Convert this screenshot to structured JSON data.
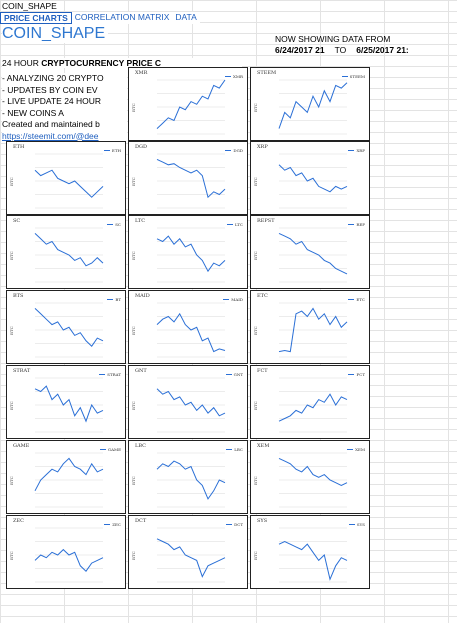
{
  "sheet": {
    "title": "COIN_SHAPE"
  },
  "tabs": [
    {
      "label": "PRICE CHARTS",
      "active": true
    },
    {
      "label": "CORRELATION MATRIX",
      "active": false
    },
    {
      "label": "DATA",
      "active": false
    }
  ],
  "brand": "COIN_SHAPE",
  "header": {
    "now_showing": "NOW SHOWING DATA FROM",
    "date_from": "6/24/2017 21",
    "to_label": "TO",
    "date_to": "6/25/2017 21:"
  },
  "hours": {
    "prefix": "24 HOUR ",
    "bold": "CRYPTOCURRENCY PRICE C"
  },
  "bullets": [
    "- ANALYZING 20 CRYPTO",
    "- UPDATES BY COIN EV",
    "- LIVE UPDATE 24 HOUR",
    "- NEW COINS A",
    "Created and maintained b"
  ],
  "link": "https://steemit.com/@dee",
  "colors": {
    "line": "#2a6fd6",
    "accent": "#2e77d0"
  },
  "chart_data": [
    {
      "type": "line",
      "title": "XMR",
      "legend": "XMR",
      "ylabel": "BTC",
      "values": [
        0.1,
        0.2,
        0.3,
        0.25,
        0.5,
        0.45,
        0.6,
        0.55,
        0.7,
        0.65,
        0.9,
        0.85,
        1.0
      ]
    },
    {
      "type": "line",
      "title": "STEEM",
      "legend": "STEEM",
      "ylabel": "BTC",
      "values": [
        0.1,
        0.4,
        0.3,
        0.6,
        0.5,
        0.4,
        0.7,
        0.5,
        0.8,
        0.6,
        0.9,
        0.85,
        0.95
      ]
    },
    {
      "type": "line",
      "title": "ETH",
      "legend": "ETH",
      "ylabel": "BTC",
      "values": [
        0.7,
        0.6,
        0.65,
        0.7,
        0.55,
        0.5,
        0.45,
        0.5,
        0.4,
        0.3,
        0.2,
        0.3,
        0.4
      ]
    },
    {
      "type": "line",
      "title": "DGD",
      "legend": "DGD",
      "ylabel": "BTC",
      "values": [
        0.9,
        0.85,
        0.8,
        0.82,
        0.75,
        0.7,
        0.65,
        0.7,
        0.6,
        0.2,
        0.3,
        0.25,
        0.35
      ]
    },
    {
      "type": "line",
      "title": "XRP",
      "legend": "XRP",
      "ylabel": "BTC",
      "values": [
        0.8,
        0.7,
        0.75,
        0.6,
        0.65,
        0.5,
        0.55,
        0.4,
        0.35,
        0.3,
        0.4,
        0.35,
        0.4
      ]
    },
    {
      "type": "line",
      "title": "SC",
      "legend": "SC",
      "ylabel": "BTC",
      "values": [
        0.9,
        0.8,
        0.7,
        0.75,
        0.6,
        0.55,
        0.5,
        0.4,
        0.45,
        0.3,
        0.35,
        0.45,
        0.35
      ]
    },
    {
      "type": "line",
      "title": "LTC",
      "legend": "LTC",
      "ylabel": "BTC",
      "values": [
        0.8,
        0.75,
        0.85,
        0.7,
        0.8,
        0.65,
        0.7,
        0.5,
        0.4,
        0.2,
        0.35,
        0.3,
        0.4
      ]
    },
    {
      "type": "line",
      "title": "REPST",
      "legend": "REP",
      "ylabel": "BTC",
      "values": [
        0.9,
        0.85,
        0.8,
        0.7,
        0.75,
        0.6,
        0.55,
        0.5,
        0.4,
        0.35,
        0.25,
        0.2,
        0.15
      ]
    },
    {
      "type": "line",
      "title": "BTS",
      "legend": "BT",
      "ylabel": "BTC",
      "values": [
        0.9,
        0.8,
        0.7,
        0.6,
        0.65,
        0.5,
        0.55,
        0.4,
        0.45,
        0.3,
        0.2,
        0.35,
        0.3
      ]
    },
    {
      "type": "line",
      "title": "MAID",
      "legend": "MAID",
      "ylabel": "BTC",
      "values": [
        0.6,
        0.7,
        0.75,
        0.65,
        0.8,
        0.6,
        0.5,
        0.55,
        0.3,
        0.35,
        0.1,
        0.15,
        0.12
      ]
    },
    {
      "type": "line",
      "title": "ETC",
      "legend": "ETC",
      "ylabel": "BTC",
      "values": [
        0.1,
        0.12,
        0.1,
        0.8,
        0.85,
        0.75,
        0.9,
        0.7,
        0.8,
        0.6,
        0.75,
        0.55,
        0.65
      ]
    },
    {
      "type": "line",
      "title": "STRAT",
      "legend": "STRAT",
      "ylabel": "BTC",
      "values": [
        0.8,
        0.75,
        0.85,
        0.6,
        0.7,
        0.5,
        0.6,
        0.3,
        0.45,
        0.2,
        0.5,
        0.35,
        0.4
      ]
    },
    {
      "type": "line",
      "title": "GNT",
      "legend": "GNT",
      "ylabel": "BTC",
      "values": [
        0.8,
        0.7,
        0.75,
        0.6,
        0.65,
        0.5,
        0.55,
        0.4,
        0.5,
        0.35,
        0.45,
        0.3,
        0.35
      ]
    },
    {
      "type": "line",
      "title": "FCT",
      "legend": "FCT",
      "ylabel": "BTC",
      "values": [
        0.2,
        0.25,
        0.3,
        0.4,
        0.35,
        0.5,
        0.45,
        0.6,
        0.55,
        0.7,
        0.5,
        0.65,
        0.6
      ]
    },
    {
      "type": "line",
      "title": "GAME",
      "legend": "GAME",
      "ylabel": "BTC",
      "values": [
        0.3,
        0.5,
        0.6,
        0.7,
        0.65,
        0.8,
        0.9,
        0.75,
        0.7,
        0.6,
        0.8,
        0.65,
        0.7
      ]
    },
    {
      "type": "line",
      "title": "LBC",
      "legend": "LBC",
      "ylabel": "BTC",
      "values": [
        0.7,
        0.8,
        0.75,
        0.85,
        0.8,
        0.7,
        0.75,
        0.5,
        0.4,
        0.15,
        0.3,
        0.5,
        0.45
      ]
    },
    {
      "type": "line",
      "title": "XEM",
      "legend": "XEM",
      "ylabel": "BTC",
      "values": [
        0.9,
        0.85,
        0.8,
        0.7,
        0.65,
        0.75,
        0.6,
        0.55,
        0.6,
        0.5,
        0.45,
        0.4,
        0.45
      ]
    },
    {
      "type": "line",
      "title": "ZEC",
      "legend": "ZEC",
      "ylabel": "BTC",
      "values": [
        0.4,
        0.5,
        0.45,
        0.55,
        0.5,
        0.6,
        0.5,
        0.55,
        0.3,
        0.2,
        0.35,
        0.4,
        0.45
      ]
    },
    {
      "type": "line",
      "title": "DCT",
      "legend": "DCT",
      "ylabel": "BTC",
      "values": [
        0.8,
        0.75,
        0.7,
        0.6,
        0.65,
        0.5,
        0.45,
        0.4,
        0.1,
        0.3,
        0.35,
        0.4,
        0.45
      ]
    },
    {
      "type": "line",
      "title": "SYS",
      "legend": "SYS",
      "ylabel": "BTC",
      "values": [
        0.7,
        0.75,
        0.7,
        0.65,
        0.6,
        0.7,
        0.55,
        0.4,
        0.5,
        0.05,
        0.3,
        0.45,
        0.4
      ]
    }
  ]
}
